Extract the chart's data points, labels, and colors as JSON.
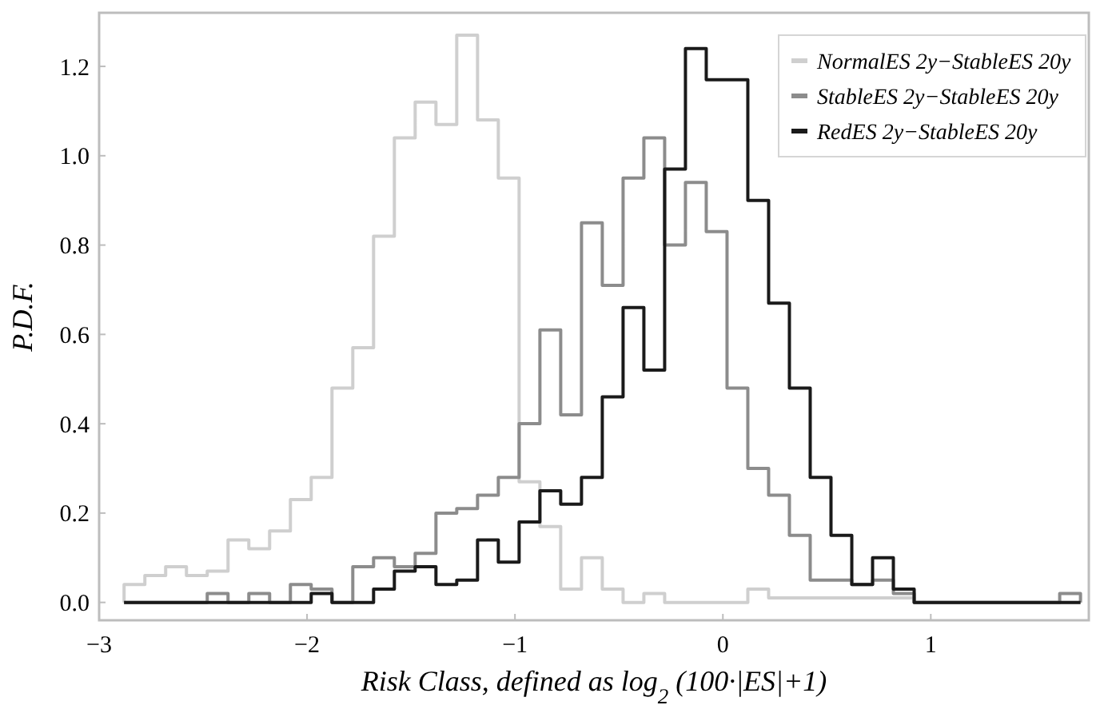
{
  "chart_data": {
    "type": "histogram",
    "xlabel": "Risk Class, defined as log$_{2}$ (100·|ES|+1)",
    "ylabel": "P.D.F.",
    "bins": [
      -2.88,
      -2.78,
      -2.68,
      -2.58,
      -2.48,
      -2.38,
      -2.28,
      -2.18,
      -2.08,
      -1.98,
      -1.88,
      -1.78,
      -1.68,
      -1.58,
      -1.48,
      -1.38,
      -1.28,
      -1.18,
      -1.08,
      -0.98,
      -0.88,
      -0.78,
      -0.68,
      -0.58,
      -0.48,
      -0.38,
      -0.28,
      -0.18,
      -0.08,
      0.02,
      0.12,
      0.22,
      0.32,
      0.42,
      0.52,
      0.62,
      0.72,
      0.82,
      0.92,
      1.02,
      1.12,
      1.22,
      1.32,
      1.42,
      1.52,
      1.62,
      1.72
    ],
    "series": [
      {
        "name": "NormalES 2y−StableES 20y",
        "color": "#cfcfcf",
        "values": [
          0.04,
          0.06,
          0.08,
          0.06,
          0.07,
          0.14,
          0.12,
          0.16,
          0.23,
          0.28,
          0.48,
          0.57,
          0.82,
          1.04,
          1.12,
          1.07,
          1.27,
          1.08,
          0.95,
          0.27,
          0.17,
          0.03,
          0.1,
          0.03,
          0.0,
          0.02,
          0.0,
          0.0,
          0.0,
          0.0,
          0.03,
          0.01,
          0.01,
          0.01,
          0.01,
          0.01,
          0.01,
          0.01,
          0.0,
          0.0,
          0.0,
          0.0,
          0.0,
          0.0,
          0.0,
          0.0
        ]
      },
      {
        "name": "StableES 2y−StableES 20y",
        "color": "#8c8c8c",
        "values": [
          0.0,
          0.0,
          0.0,
          0.0,
          0.02,
          0.0,
          0.02,
          0.0,
          0.04,
          0.03,
          0.0,
          0.08,
          0.1,
          0.08,
          0.11,
          0.2,
          0.21,
          0.24,
          0.28,
          0.4,
          0.61,
          0.42,
          0.85,
          0.71,
          0.95,
          1.04,
          0.8,
          0.94,
          0.83,
          0.48,
          0.3,
          0.24,
          0.15,
          0.05,
          0.05,
          0.04,
          0.05,
          0.02,
          0.0,
          0.0,
          0.0,
          0.0,
          0.0,
          0.0,
          0.0,
          0.02
        ]
      },
      {
        "name": "RedES 2y−StableES 20y",
        "color": "#1a1a1a",
        "values": [
          0.0,
          0.0,
          0.0,
          0.0,
          0.0,
          0.0,
          0.0,
          0.0,
          0.0,
          0.02,
          0.0,
          0.0,
          0.03,
          0.07,
          0.08,
          0.04,
          0.05,
          0.14,
          0.09,
          0.18,
          0.25,
          0.22,
          0.28,
          0.46,
          0.66,
          0.52,
          0.97,
          1.24,
          1.17,
          1.17,
          0.9,
          0.67,
          0.48,
          0.28,
          0.15,
          0.04,
          0.1,
          0.03,
          0.0,
          0.0,
          0.0,
          0.0,
          0.0,
          0.0,
          0.0,
          0.0
        ]
      }
    ],
    "xlim": [
      -3.0,
      1.76
    ],
    "ylim": [
      -0.04,
      1.32
    ],
    "xticks": [
      {
        "value": -3,
        "label": "−3"
      },
      {
        "value": -2,
        "label": "−2"
      },
      {
        "value": -1,
        "label": "−1"
      },
      0,
      1
    ],
    "yticks": [
      {
        "value": 0,
        "label": "0.0"
      },
      0.2,
      0.4,
      0.6,
      0.8,
      {
        "value": 1,
        "label": "1.0"
      },
      1.2
    ],
    "legend": "top right"
  }
}
